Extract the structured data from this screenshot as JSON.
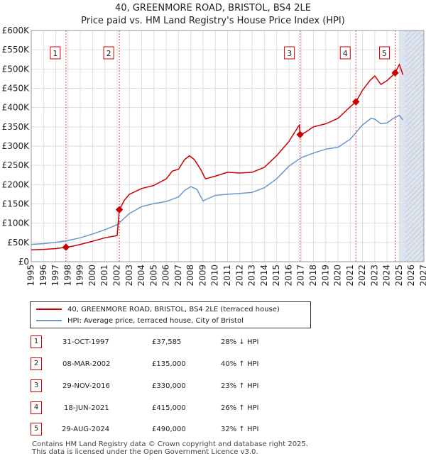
{
  "title_line1": "40, GREENMORE ROAD, BRISTOL, BS4 2LE",
  "title_line2": "Price paid vs. HM Land Registry's House Price Index (HPI)",
  "colors": {
    "property": "#cc0000",
    "hpi": "#6a96cc",
    "grid": "#dddddd",
    "sale_line": "#dd4444",
    "shade": "#dce4f2",
    "hatch": "#c0c0c0"
  },
  "chart_data": {
    "type": "line",
    "title": "40, GREENMORE ROAD, BRISTOL, BS4 2LE — Price paid vs. HM Land Registry's House Price Index (HPI)",
    "xlim": [
      1995,
      2027
    ],
    "ylim": [
      0,
      600000
    ],
    "x_ticks": [
      "1995",
      "1996",
      "1997",
      "1998",
      "1999",
      "2000",
      "2001",
      "2002",
      "2003",
      "2004",
      "2005",
      "2006",
      "2007",
      "2008",
      "2009",
      "2010",
      "2011",
      "2012",
      "2013",
      "2014",
      "2015",
      "2016",
      "2017",
      "2018",
      "2019",
      "2020",
      "2021",
      "2022",
      "2023",
      "2024",
      "2025",
      "2026",
      "2027"
    ],
    "y_ticks": [
      {
        "value": 0,
        "label": "£0"
      },
      {
        "value": 50000,
        "label": "£50K"
      },
      {
        "value": 100000,
        "label": "£100K"
      },
      {
        "value": 150000,
        "label": "£150K"
      },
      {
        "value": 200000,
        "label": "£200K"
      },
      {
        "value": 250000,
        "label": "£250K"
      },
      {
        "value": 300000,
        "label": "£300K"
      },
      {
        "value": 350000,
        "label": "£350K"
      },
      {
        "value": 400000,
        "label": "£400K"
      },
      {
        "value": 450000,
        "label": "£450K"
      },
      {
        "value": 500000,
        "label": "£500K"
      },
      {
        "value": 550000,
        "label": "£550K"
      },
      {
        "value": 600000,
        "label": "£600K"
      }
    ],
    "shaded_from": 2025.0,
    "hatched_from": 2025.5,
    "series": [
      {
        "name": "40, GREENMORE ROAD, BRISTOL, BS4 2LE (terraced house)",
        "color": "#cc0000",
        "x": [
          1995,
          1996,
          1997,
          1997.83,
          1998.5,
          1999,
          2000,
          2001,
          2002.0,
          2002.18,
          2002.6,
          2003,
          2004,
          2005,
          2006,
          2006.5,
          2007,
          2007.5,
          2007.9,
          2008.3,
          2008.8,
          2009.2,
          2010,
          2011,
          2012,
          2013,
          2014,
          2015,
          2016,
          2016.85,
          2016.91,
          2017.3,
          2018,
          2019,
          2020,
          2021,
          2021.46,
          2022,
          2022.6,
          2023,
          2023.5,
          2024,
          2024.66,
          2025,
          2025.3
        ],
        "y": [
          31000,
          32000,
          34000,
          37585,
          41000,
          45000,
          53000,
          62000,
          68000,
          135000,
          160000,
          175000,
          190000,
          198000,
          215000,
          235000,
          240000,
          265000,
          275000,
          265000,
          240000,
          215000,
          222000,
          232000,
          230000,
          232000,
          245000,
          275000,
          312000,
          355000,
          330000,
          335000,
          350000,
          358000,
          372000,
          402000,
          415000,
          445000,
          470000,
          482000,
          460000,
          470000,
          490000,
          512000,
          485000
        ]
      },
      {
        "name": "HPI: Average price, terraced house, City of Bristol",
        "color": "#6a96cc",
        "x": [
          1995,
          1996,
          1997,
          1998,
          1999,
          2000,
          2001,
          2002,
          2003,
          2004,
          2005,
          2006,
          2007,
          2007.5,
          2008,
          2008.5,
          2009,
          2010,
          2011,
          2012,
          2013,
          2014,
          2015,
          2016,
          2017,
          2018,
          2019,
          2020,
          2021,
          2022,
          2022.7,
          2023,
          2023.5,
          2024,
          2024.5,
          2025,
          2025.3
        ],
        "y": [
          45000,
          47000,
          50000,
          55000,
          62000,
          72000,
          83000,
          96000,
          125000,
          143000,
          151000,
          156000,
          168000,
          185000,
          195000,
          188000,
          158000,
          172000,
          175000,
          177000,
          180000,
          192000,
          215000,
          248000,
          270000,
          282000,
          292000,
          297000,
          318000,
          355000,
          372000,
          370000,
          358000,
          360000,
          372000,
          380000,
          368000
        ]
      }
    ],
    "sales": [
      {
        "n": "1",
        "x": 1997.83,
        "price": 37585
      },
      {
        "n": "2",
        "x": 2002.18,
        "price": 135000
      },
      {
        "n": "3",
        "x": 2016.91,
        "price": 330000
      },
      {
        "n": "4",
        "x": 2021.46,
        "price": 415000
      },
      {
        "n": "5",
        "x": 2024.66,
        "price": 490000
      }
    ]
  },
  "legend": {
    "property_label": "40, GREENMORE ROAD, BRISTOL, BS4 2LE (terraced house)",
    "hpi_label": "HPI: Average price, terraced house, City of Bristol"
  },
  "transactions": [
    {
      "n": "1",
      "date": "31-OCT-1997",
      "price": "£37,585",
      "hpi": "28% ↓ HPI"
    },
    {
      "n": "2",
      "date": "08-MAR-2002",
      "price": "£135,000",
      "hpi": "40% ↑ HPI"
    },
    {
      "n": "3",
      "date": "29-NOV-2016",
      "price": "£330,000",
      "hpi": "23% ↑ HPI"
    },
    {
      "n": "4",
      "date": "18-JUN-2021",
      "price": "£415,000",
      "hpi": "26% ↑ HPI"
    },
    {
      "n": "5",
      "date": "29-AUG-2024",
      "price": "£490,000",
      "hpi": "32% ↑ HPI"
    }
  ],
  "footer_line1": "Contains HM Land Registry data © Crown copyright and database right 2025.",
  "footer_line2": "This data is licensed under the Open Government Licence v3.0."
}
